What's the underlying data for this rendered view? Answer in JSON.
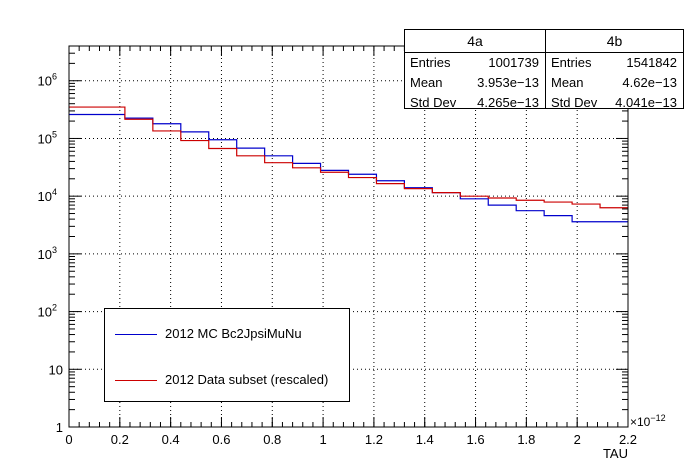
{
  "chart_data": {
    "type": "histogram",
    "xlabel": "TAU",
    "x_exponent_label": "×10",
    "x_exponent_power": "−12",
    "xlim": [
      0,
      2.2
    ],
    "ylim": [
      1,
      4000000
    ],
    "yscale": "log",
    "grid": true,
    "x_ticks": [
      "0",
      "0.2",
      "0.4",
      "0.6",
      "0.8",
      "1",
      "1.2",
      "1.4",
      "1.6",
      "1.8",
      "2",
      "2.2"
    ],
    "y_ticks": [
      {
        "base": "1",
        "exp": ""
      },
      {
        "base": "10",
        "exp": ""
      },
      {
        "base": "10",
        "exp": "2"
      },
      {
        "base": "10",
        "exp": "3"
      },
      {
        "base": "10",
        "exp": "4"
      },
      {
        "base": "10",
        "exp": "5"
      },
      {
        "base": "10",
        "exp": "6"
      }
    ],
    "bin_edges": [
      0,
      0.22,
      0.33,
      0.44,
      0.55,
      0.66,
      0.77,
      0.88,
      0.99,
      1.1,
      1.21,
      1.32,
      1.43,
      1.54,
      1.65,
      1.76,
      1.87,
      1.98,
      2.09,
      2.2
    ],
    "series": [
      {
        "name": "2012 MC Bc2JpsiMuNu",
        "color": "#0000cc",
        "values": [
          260000,
          225000,
          180000,
          130000,
          95000,
          68000,
          50000,
          37000,
          28000,
          24000,
          18500,
          14000,
          11500,
          9000,
          7000,
          5600,
          4600,
          3600,
          3600
        ]
      },
      {
        "name": "2012 Data subset (rescaled)",
        "color": "#cc0000",
        "values": [
          350000,
          215000,
          135000,
          92000,
          67000,
          50000,
          38000,
          31000,
          26000,
          21000,
          16500,
          13500,
          11500,
          10000,
          9300,
          8500,
          7900,
          7300,
          6300
        ]
      }
    ]
  },
  "stats": [
    {
      "title": "4a",
      "rows": [
        [
          "Entries",
          "1001739"
        ],
        [
          "Mean",
          "3.953e−13"
        ],
        [
          "Std Dev",
          "4.265e−13"
        ]
      ]
    },
    {
      "title": "4b",
      "rows": [
        [
          "Entries",
          "1541842"
        ],
        [
          "Mean",
          "4.62e−13"
        ],
        [
          "Std Dev",
          "4.041e−13"
        ]
      ]
    }
  ],
  "legend": {
    "entries": [
      {
        "label": "2012 MC Bc2JpsiMuNu",
        "color": "#0000cc"
      },
      {
        "label": "2012 Data subset (rescaled)",
        "color": "#cc0000"
      }
    ]
  }
}
